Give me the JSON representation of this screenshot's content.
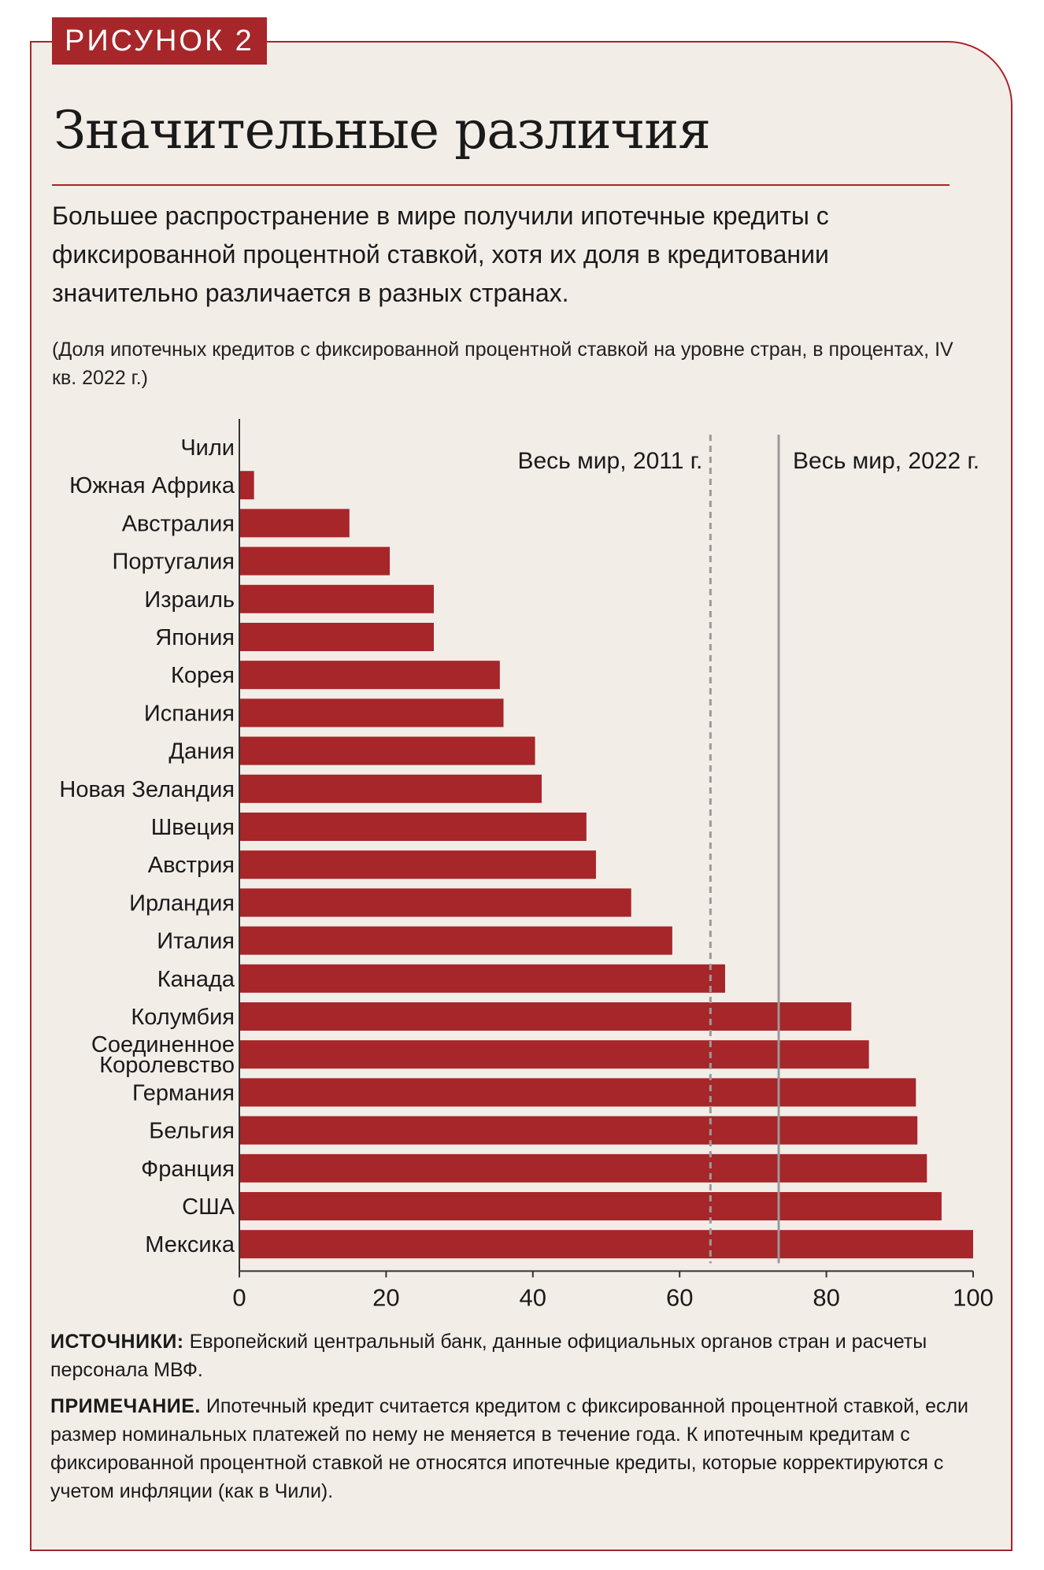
{
  "figure_tag": "РИСУНОК 2",
  "title": "Значительные различия",
  "subtitle": "Большее распространение в мире получили ипотечные кредиты с фиксированной процентной ставкой, хотя их доля в кредитовании значительно различается в разных странах.",
  "units_note": "(Доля ипотечных кредитов с фиксированной процентной ставкой на уровне стран, в процентах, IV кв. 2022 г.)",
  "colors": {
    "bar": "#a6262a",
    "reference": "#9a9a9a",
    "frame_background": "#f3ede8"
  },
  "chart_data": {
    "type": "bar",
    "orientation": "horizontal",
    "categories": [
      "Чили",
      "Южная Африка",
      "Австралия",
      "Португалия",
      "Израиль",
      "Япония",
      "Корея",
      "Испания",
      "Дания",
      "Новая Зеландия",
      "Швеция",
      "Австрия",
      "Ирландия",
      "Италия",
      "Канада",
      "Колумбия",
      "Соединенное Королевство",
      "Германия",
      "Бельгия",
      "Франция",
      "США",
      "Мексика"
    ],
    "values": [
      0,
      2,
      15,
      20.5,
      26.5,
      26.5,
      35.5,
      36,
      40.3,
      41.2,
      47.3,
      48.6,
      53.4,
      59,
      66.2,
      83.4,
      85.8,
      92.2,
      92.4,
      93.7,
      95.7,
      100
    ],
    "xlim": [
      0,
      100
    ],
    "xticks": [
      0,
      20,
      40,
      60,
      80,
      100
    ],
    "reference_lines": [
      {
        "label": "Весь мир, 2011 г.",
        "value": 64.2,
        "style": "dashed"
      },
      {
        "label": "Весь мир, 2022 г.",
        "value": 73.5,
        "style": "solid"
      }
    ],
    "title": "Значительные различия",
    "xlabel": "",
    "ylabel": ""
  },
  "sources_label": "ИСТОЧНИКИ:",
  "sources_text": "Европейский центральный банк, данные официальных органов стран и расчеты персонала МВФ.",
  "note_label": "ПРИМЕЧАНИЕ.",
  "note_text": "Ипотечный кредит считается кредитом с фиксированной процентной ставкой, если размер номинальных платежей по нему не меняется в течение года. К ипотечным кредитам с фиксированной процентной ставкой не относятся ипотечные кредиты, которые корректируются с учетом инфляции (как в Чили)."
}
